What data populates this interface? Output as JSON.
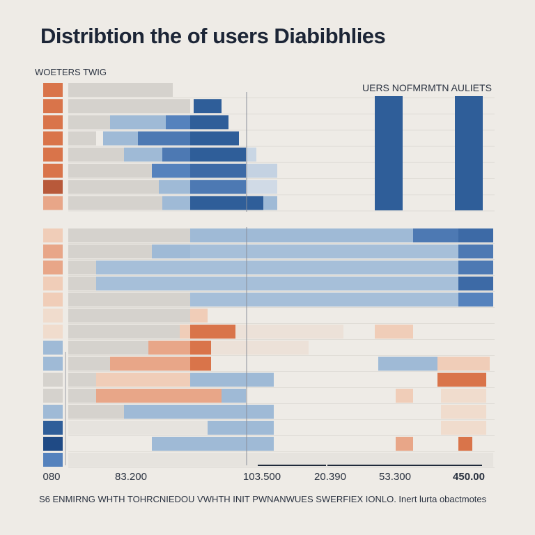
{
  "page": {
    "title": "Distribtion the of users Diabibhlies",
    "subtitle": "WOETERS TWIG",
    "legend_label": "UERS NOFMRMTN AULIETS",
    "footnote": "S6 ENMIRNG WHTH TOHRCNIEDOU VWHTH INIT PWNANWUES SWERFIEX IONLO. Inert lurta obactmotes"
  },
  "chart_data": {
    "type": "bar",
    "title": "Distribtion the of users Diabibhlies",
    "subtitle": "WOETERS TWIG",
    "legend": [
      {
        "label": "UERS NOFMRMTN AULIETS",
        "position": "top-right"
      }
    ],
    "x_tick_labels": [
      "080",
      "83.200",
      "103.500",
      "20.390",
      "53.300",
      "450.00"
    ],
    "grid": true,
    "colors": {
      "dark_blue": "#2f5e99",
      "mid_blue": "#5582bd",
      "light_blue": "#9fbad6",
      "grey": "#d5d2cd",
      "orange": "#d9744a",
      "peach": "#e8a688",
      "pale_peach": "#f0cdb8"
    },
    "panels": [
      {
        "name": "upper",
        "rows": [
          {
            "label_color": "#d9744a",
            "segments": [
              [
                0,
                150,
                "#d5d2cd"
              ]
            ]
          },
          {
            "label_color": "#d9744a",
            "segments": [
              [
                0,
                175,
                "#d5d2cd"
              ],
              [
                180,
                220,
                "#2f5e99"
              ]
            ]
          },
          {
            "label_color": "#d9744a",
            "segments": [
              [
                0,
                60,
                "#d5d2cd"
              ],
              [
                60,
                140,
                "#9fbad6"
              ],
              [
                140,
                175,
                "#5582bd"
              ],
              [
                175,
                230,
                "#2f5e99"
              ]
            ]
          },
          {
            "label_color": "#d9744a",
            "segments": [
              [
                0,
                40,
                "#d5d2cd"
              ],
              [
                50,
                100,
                "#9fbad6"
              ],
              [
                100,
                175,
                "#4d79b3"
              ],
              [
                175,
                245,
                "#2f5e99"
              ]
            ]
          },
          {
            "label_color": "#d9744a",
            "segments": [
              [
                0,
                80,
                "#d5d2cd"
              ],
              [
                80,
                135,
                "#9fbad6"
              ],
              [
                135,
                175,
                "#4d79b3"
              ],
              [
                175,
                255,
                "#2f5e99"
              ],
              [
                255,
                270,
                "#c9d6e4"
              ]
            ]
          },
          {
            "label_color": "#d9744a",
            "segments": [
              [
                0,
                120,
                "#d5d2cd"
              ],
              [
                120,
                175,
                "#5582bd"
              ],
              [
                175,
                255,
                "#3d6aa6"
              ],
              [
                255,
                300,
                "#c4d2e2"
              ]
            ]
          },
          {
            "label_color": "#b8593a",
            "segments": [
              [
                0,
                130,
                "#d5d2cd"
              ],
              [
                130,
                175,
                "#9fbad6"
              ],
              [
                175,
                255,
                "#4d79b3"
              ],
              [
                255,
                300,
                "#d0dae6"
              ]
            ]
          },
          {
            "label_color": "#e8a688",
            "segments": [
              [
                0,
                135,
                "#d5d2cd"
              ],
              [
                135,
                175,
                "#9fbad6"
              ],
              [
                175,
                280,
                "#2f5e99"
              ],
              [
                280,
                300,
                "#9fbad6"
              ]
            ]
          }
        ],
        "tall_bars": [
          {
            "x_from": 440,
            "x_to": 480,
            "y_top": 138,
            "color": "#2f5e99"
          },
          {
            "x_from": 555,
            "x_to": 595,
            "y_top": 138,
            "color": "#2f5e99"
          }
        ]
      },
      {
        "name": "lower",
        "rows": [
          {
            "label_color": "#f0cdb8",
            "segments": [
              [
                0,
                175,
                "#d5d2cd"
              ],
              [
                175,
                495,
                "#9fbad6"
              ],
              [
                495,
                560,
                "#4d79b3"
              ],
              [
                560,
                610,
                "#3d6aa6"
              ]
            ]
          },
          {
            "label_color": "#e8a688",
            "segments": [
              [
                0,
                120,
                "#d5d2cd"
              ],
              [
                120,
                175,
                "#9fbad6"
              ],
              [
                175,
                560,
                "#a6bfd9"
              ],
              [
                560,
                610,
                "#4d79b3"
              ]
            ]
          },
          {
            "label_color": "#e8a688",
            "segments": [
              [
                0,
                40,
                "#d5d2cd"
              ],
              [
                40,
                560,
                "#a6bfd9"
              ],
              [
                560,
                610,
                "#4d79b3"
              ]
            ]
          },
          {
            "label_color": "#f0cdb8",
            "segments": [
              [
                0,
                40,
                "#d5d2cd"
              ],
              [
                40,
                560,
                "#a6bfd9"
              ],
              [
                560,
                610,
                "#3d6aa6"
              ]
            ]
          },
          {
            "label_color": "#f0cdb8",
            "segments": [
              [
                0,
                175,
                "#d5d2cd"
              ],
              [
                175,
                560,
                "#a6bfd9"
              ],
              [
                560,
                610,
                "#5582bd"
              ]
            ]
          },
          {
            "label_color": "#f0dccd",
            "segments": [
              [
                0,
                175,
                "#d5d2cd"
              ],
              [
                175,
                200,
                "#f0cdb8"
              ]
            ]
          },
          {
            "label_color": "#f0dccd",
            "segments": [
              [
                0,
                160,
                "#d5d2cd"
              ],
              [
                160,
                175,
                "#f0cdb8"
              ],
              [
                175,
                240,
                "#d9744a"
              ],
              [
                240,
                395,
                "#ece1d8"
              ],
              [
                440,
                495,
                "#f0cdb8"
              ]
            ]
          },
          {
            "label_color": "#9fbad6",
            "segments": [
              [
                0,
                115,
                "#d5d2cd"
              ],
              [
                115,
                175,
                "#e8a688"
              ],
              [
                175,
                205,
                "#d9744a"
              ],
              [
                205,
                345,
                "#ece1d8"
              ]
            ]
          },
          {
            "label_color": "#9fbad6",
            "segments": [
              [
                0,
                60,
                "#d5d2cd"
              ],
              [
                60,
                175,
                "#e8a688"
              ],
              [
                175,
                205,
                "#d9744a"
              ],
              [
                445,
                530,
                "#9fbad6"
              ],
              [
                530,
                605,
                "#f0cdb8"
              ]
            ]
          },
          {
            "label_color": "#d5d2cd",
            "segments": [
              [
                0,
                40,
                "#d5d2cd"
              ],
              [
                40,
                175,
                "#f0cdb8"
              ],
              [
                175,
                295,
                "#9fbad6"
              ],
              [
                530,
                600,
                "#d9744a"
              ]
            ]
          },
          {
            "label_color": "#d5d2cd",
            "segments": [
              [
                0,
                40,
                "#d5d2cd"
              ],
              [
                40,
                175,
                "#e8a688"
              ],
              [
                175,
                220,
                "#e8a688"
              ],
              [
                220,
                255,
                "#9fbad6"
              ],
              [
                470,
                495,
                "#f0cdb8"
              ],
              [
                535,
                600,
                "#f0dccd"
              ]
            ]
          },
          {
            "label_color": "#9fbad6",
            "segments": [
              [
                0,
                80,
                "#d5d2cd"
              ],
              [
                80,
                175,
                "#9fbad6"
              ],
              [
                175,
                295,
                "#9fbad6"
              ],
              [
                535,
                600,
                "#f0dccd"
              ]
            ]
          },
          {
            "label_color": "#2f5e99",
            "segments": [
              [
                0,
                200,
                "#e6e3de"
              ],
              [
                200,
                295,
                "#9fbad6"
              ],
              [
                535,
                600,
                "#f0dccd"
              ]
            ]
          },
          {
            "label_color": "#1f4a85",
            "segments": [
              [
                120,
                175,
                "#9fbad6"
              ],
              [
                175,
                295,
                "#9fbad6"
              ],
              [
                470,
                495,
                "#e8a688"
              ],
              [
                560,
                580,
                "#d9744a"
              ]
            ]
          },
          {
            "label_color": "#5582bd",
            "segments": [
              [
                0,
                610,
                "#e6e3de"
              ]
            ]
          }
        ]
      }
    ]
  }
}
